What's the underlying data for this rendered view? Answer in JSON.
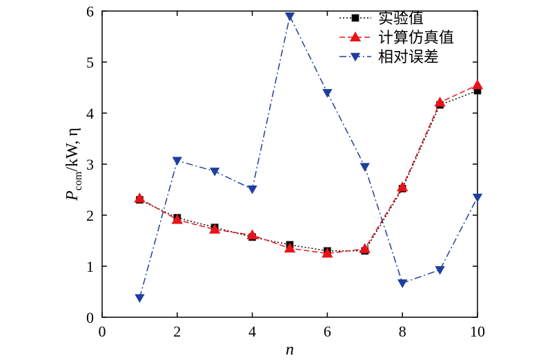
{
  "chart_data": {
    "type": "line",
    "title": "",
    "xlabel": "n",
    "ylabel": {
      "base": "P",
      "subscript": "com",
      "suffix": "/kW, η"
    },
    "xlim": [
      0,
      10
    ],
    "ylim": [
      0,
      6
    ],
    "xticks": [
      "0",
      "2",
      "4",
      "6",
      "8",
      "10"
    ],
    "yticks": [
      "0",
      "1",
      "2",
      "3",
      "4",
      "5",
      "6"
    ],
    "grid": false,
    "legend_position": "top-right",
    "series": [
      {
        "name": "实验值",
        "color": "#000000",
        "marker": "square",
        "line_style": "dotted",
        "x": [
          1,
          2,
          3,
          4,
          5,
          6,
          7,
          8,
          9,
          10
        ],
        "y": [
          2.3,
          1.95,
          1.76,
          1.57,
          1.42,
          1.3,
          1.3,
          2.52,
          4.16,
          4.44
        ]
      },
      {
        "name": "计算仿真值",
        "color": "#e8141a",
        "marker": "triangle-up",
        "line_style": "dashed",
        "x": [
          1,
          2,
          3,
          4,
          5,
          6,
          7,
          8,
          9,
          10
        ],
        "y": [
          2.33,
          1.91,
          1.72,
          1.61,
          1.35,
          1.25,
          1.34,
          2.55,
          4.21,
          4.55
        ]
      },
      {
        "name": "相对误差",
        "color": "#1f3e9e",
        "marker": "triangle-down",
        "line_style": "dash-dot",
        "x": [
          1,
          2,
          3,
          4,
          5,
          6,
          7,
          8,
          9,
          10
        ],
        "y": [
          0.38,
          3.07,
          2.86,
          2.51,
          5.9,
          4.4,
          2.95,
          0.67,
          0.93,
          2.35
        ]
      }
    ]
  }
}
